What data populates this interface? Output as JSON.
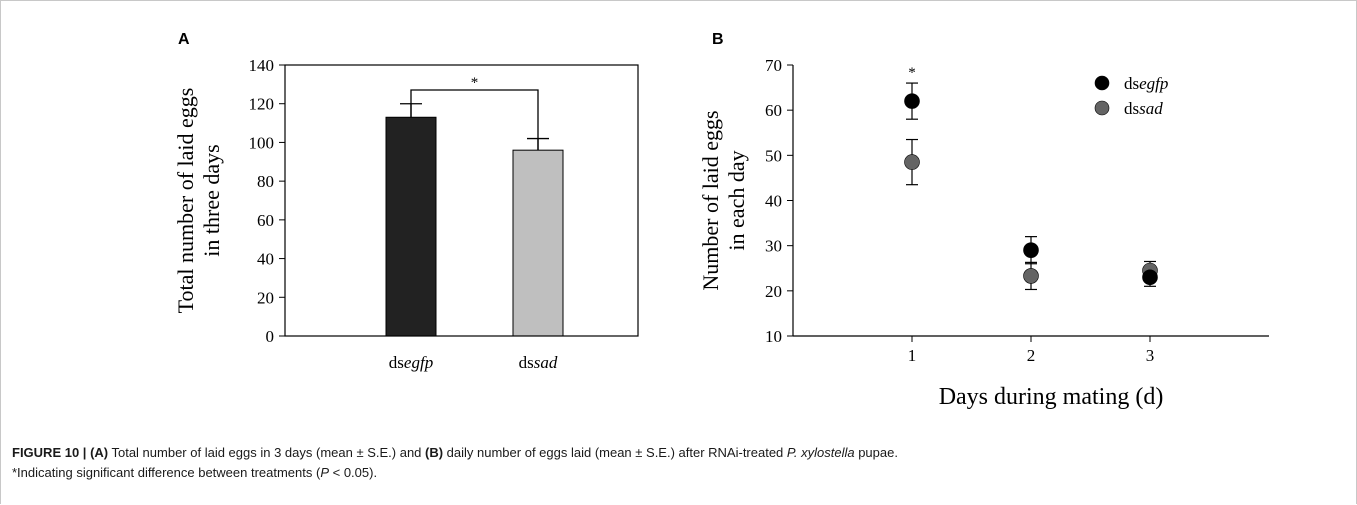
{
  "chart_data": [
    {
      "type": "bar",
      "panel_label": "A",
      "ylabel": [
        "Total number of laid eggs",
        "in three days"
      ],
      "categories": [
        {
          "prefix": "ds",
          "italic": "egfp"
        },
        {
          "prefix": "ds",
          "italic": "sad"
        }
      ],
      "values": [
        113,
        96
      ],
      "errors": [
        7,
        6
      ],
      "bar_colors": [
        "#222222",
        "#bfbfbf"
      ],
      "ylim": [
        0,
        140
      ],
      "yticks": [
        0,
        20,
        40,
        60,
        80,
        100,
        120,
        140
      ],
      "significance": "*",
      "grid": false
    },
    {
      "type": "scatter",
      "panel_label": "B",
      "xlabel": "Days during mating (d)",
      "ylabel": [
        "Number of laid eggs",
        "in each day"
      ],
      "x": [
        1,
        2,
        3
      ],
      "xlim": [
        0,
        4
      ],
      "xticks": [
        1,
        2,
        3
      ],
      "ylim": [
        10,
        70
      ],
      "yticks": [
        10,
        20,
        30,
        40,
        50,
        60,
        70
      ],
      "series": [
        {
          "name_prefix": "ds",
          "name_italic": "egfp",
          "color": "#000000",
          "values": [
            62,
            29,
            23
          ],
          "errors": [
            4,
            3,
            2
          ]
        },
        {
          "name_prefix": "ds",
          "name_italic": "sad",
          "color": "#646464",
          "values": [
            48.5,
            23.3,
            24.5
          ],
          "errors": [
            5,
            3,
            2
          ]
        }
      ],
      "significance": [
        {
          "x": 1,
          "mark": "*"
        }
      ],
      "legend": "top-right",
      "grid": false
    }
  ],
  "caption": {
    "label": "FIGURE 10 |",
    "a_ref": "(A)",
    "part1": " Total number of laid eggs in 3 days (mean ± S.E.) and ",
    "b_ref": "(B)",
    "part2": " daily number of eggs laid (mean ± S.E.) after RNAi-treated ",
    "species": "P. xylostella",
    "part3": " pupae.",
    "line2_start": "*Indicating significant difference between treatments (",
    "p_symbol": "P",
    "line2_end": " < 0.05)."
  }
}
